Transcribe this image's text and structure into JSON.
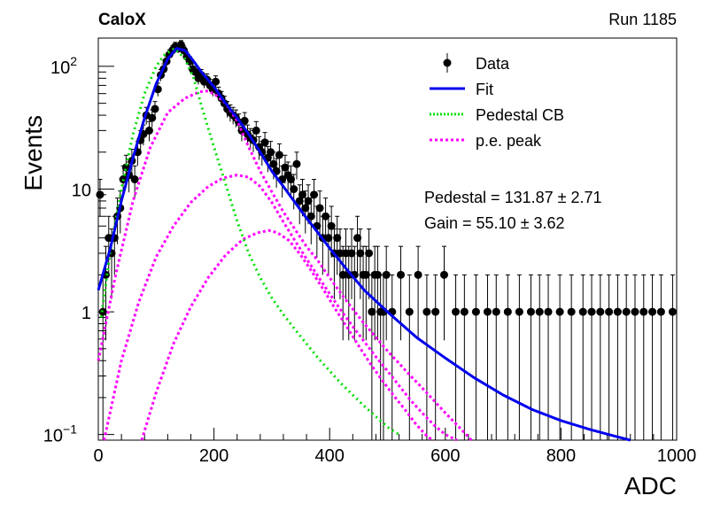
{
  "header": {
    "experiment": "CaloX",
    "run": "Run 1185"
  },
  "fit_results": {
    "pedestal": "Pedestal = 131.87 ± 2.71",
    "gain": "Gain = 55.10 ± 3.62"
  },
  "chart_data": {
    "type": "scatter",
    "title": "",
    "xlabel": "ADC",
    "ylabel": "Events",
    "xlim": [
      0,
      1000
    ],
    "ylim": [
      0.09,
      170
    ],
    "yscale": "log",
    "grid": false,
    "legend_position": "top-right",
    "x_ticks": [
      0,
      200,
      400,
      600,
      800,
      1000
    ],
    "y_ticks": [
      {
        "value": 0.1,
        "base": "10",
        "exp": "−1"
      },
      {
        "value": 1,
        "base": "1",
        "exp": ""
      },
      {
        "value": 10,
        "base": "10",
        "exp": ""
      },
      {
        "value": 100,
        "base": "10",
        "exp": "2"
      }
    ],
    "legend": [
      {
        "label": "Data",
        "style": "marker",
        "color": "#000000"
      },
      {
        "label": "Fit",
        "style": "line",
        "color": "#0000ee"
      },
      {
        "label": "Pedestal CB",
        "style": "dotted",
        "color": "#00e000"
      },
      {
        "label": "p.e. peak",
        "style": "dashed",
        "color": "#ff00ff"
      }
    ],
    "data_points": [
      [
        3,
        9
      ],
      [
        8,
        1
      ],
      [
        13,
        2
      ],
      [
        18,
        4
      ],
      [
        23,
        3
      ],
      [
        28,
        4
      ],
      [
        33,
        6
      ],
      [
        38,
        7
      ],
      [
        43,
        12
      ],
      [
        48,
        15
      ],
      [
        53,
        13
      ],
      [
        58,
        17
      ],
      [
        63,
        12
      ],
      [
        68,
        20
      ],
      [
        73,
        25
      ],
      [
        78,
        28
      ],
      [
        83,
        40
      ],
      [
        88,
        30
      ],
      [
        93,
        38
      ],
      [
        98,
        45
      ],
      [
        103,
        65
      ],
      [
        108,
        85
      ],
      [
        113,
        95
      ],
      [
        118,
        110
      ],
      [
        123,
        125
      ],
      [
        128,
        135
      ],
      [
        133,
        145
      ],
      [
        138,
        140
      ],
      [
        143,
        150
      ],
      [
        148,
        135
      ],
      [
        153,
        120
      ],
      [
        158,
        110
      ],
      [
        163,
        95
      ],
      [
        168,
        90
      ],
      [
        173,
        80
      ],
      [
        178,
        85
      ],
      [
        183,
        75
      ],
      [
        188,
        78
      ],
      [
        193,
        70
      ],
      [
        198,
        65
      ],
      [
        203,
        75
      ],
      [
        208,
        60
      ],
      [
        213,
        55
      ],
      [
        218,
        50
      ],
      [
        223,
        45
      ],
      [
        228,
        42
      ],
      [
        233,
        40
      ],
      [
        238,
        38
      ],
      [
        243,
        35
      ],
      [
        248,
        30
      ],
      [
        253,
        36
      ],
      [
        258,
        28
      ],
      [
        263,
        26
      ],
      [
        268,
        25
      ],
      [
        273,
        30
      ],
      [
        278,
        22
      ],
      [
        283,
        20
      ],
      [
        288,
        24
      ],
      [
        293,
        18
      ],
      [
        298,
        20
      ],
      [
        303,
        16
      ],
      [
        308,
        14
      ],
      [
        313,
        19
      ],
      [
        318,
        12
      ],
      [
        323,
        15
      ],
      [
        328,
        13
      ],
      [
        333,
        12
      ],
      [
        338,
        10
      ],
      [
        343,
        16
      ],
      [
        348,
        8
      ],
      [
        353,
        9
      ],
      [
        358,
        7
      ],
      [
        363,
        8
      ],
      [
        368,
        6
      ],
      [
        373,
        9
      ],
      [
        378,
        5
      ],
      [
        383,
        7
      ],
      [
        388,
        4
      ],
      [
        393,
        6
      ],
      [
        398,
        4
      ],
      [
        403,
        5
      ],
      [
        408,
        3
      ],
      [
        413,
        4
      ],
      [
        418,
        3
      ],
      [
        423,
        2
      ],
      [
        428,
        3
      ],
      [
        433,
        2
      ],
      [
        438,
        3
      ],
      [
        443,
        2
      ],
      [
        448,
        4
      ],
      [
        453,
        3
      ],
      [
        458,
        2
      ],
      [
        463,
        2
      ],
      [
        468,
        3
      ],
      [
        473,
        1
      ],
      [
        478,
        2
      ],
      [
        483,
        2
      ],
      [
        488,
        1
      ],
      [
        493,
        1
      ],
      [
        498,
        2
      ],
      [
        508,
        1
      ],
      [
        523,
        2
      ],
      [
        538,
        1
      ],
      [
        553,
        2
      ],
      [
        568,
        1
      ],
      [
        583,
        1
      ],
      [
        598,
        2
      ],
      [
        618,
        1
      ],
      [
        633,
        1
      ],
      [
        653,
        1
      ],
      [
        673,
        1
      ],
      [
        688,
        1
      ],
      [
        708,
        1
      ],
      [
        728,
        1
      ],
      [
        748,
        1
      ],
      [
        763,
        1
      ],
      [
        778,
        1
      ],
      [
        798,
        1
      ],
      [
        818,
        1
      ],
      [
        838,
        1
      ],
      [
        853,
        1
      ],
      [
        868,
        1
      ],
      [
        883,
        1
      ],
      [
        898,
        1
      ],
      [
        913,
        1
      ],
      [
        928,
        1
      ],
      [
        943,
        1
      ],
      [
        958,
        1
      ],
      [
        973,
        1
      ],
      [
        993,
        1
      ]
    ],
    "fit_curve": [
      [
        0,
        1.5
      ],
      [
        20,
        3.2
      ],
      [
        40,
        8
      ],
      [
        60,
        18
      ],
      [
        80,
        38
      ],
      [
        100,
        72
      ],
      [
        120,
        115
      ],
      [
        135,
        140
      ],
      [
        150,
        135
      ],
      [
        165,
        110
      ],
      [
        180,
        88
      ],
      [
        200,
        68
      ],
      [
        220,
        50
      ],
      [
        240,
        38
      ],
      [
        260,
        28
      ],
      [
        280,
        20
      ],
      [
        300,
        14
      ],
      [
        320,
        10.5
      ],
      [
        340,
        7.8
      ],
      [
        360,
        5.8
      ],
      [
        380,
        4.4
      ],
      [
        400,
        3.3
      ],
      [
        430,
        2.2
      ],
      [
        460,
        1.5
      ],
      [
        500,
        1.0
      ],
      [
        550,
        0.62
      ],
      [
        600,
        0.42
      ],
      [
        650,
        0.29
      ],
      [
        700,
        0.21
      ],
      [
        750,
        0.16
      ],
      [
        800,
        0.13
      ],
      [
        850,
        0.11
      ],
      [
        900,
        0.095
      ],
      [
        920,
        0.09
      ]
    ],
    "pedestal_cb": [
      [
        5,
        0.9
      ],
      [
        20,
        3
      ],
      [
        40,
        10
      ],
      [
        60,
        28
      ],
      [
        80,
        60
      ],
      [
        100,
        100
      ],
      [
        115,
        125
      ],
      [
        132,
        140
      ],
      [
        150,
        115
      ],
      [
        165,
        80
      ],
      [
        180,
        45
      ],
      [
        200,
        22
      ],
      [
        220,
        11
      ],
      [
        240,
        5.5
      ],
      [
        260,
        3.0
      ],
      [
        280,
        1.9
      ],
      [
        300,
        1.3
      ],
      [
        320,
        0.95
      ],
      [
        340,
        0.72
      ],
      [
        360,
        0.55
      ],
      [
        380,
        0.42
      ],
      [
        400,
        0.33
      ],
      [
        420,
        0.26
      ],
      [
        440,
        0.21
      ],
      [
        460,
        0.17
      ],
      [
        480,
        0.14
      ],
      [
        500,
        0.115
      ],
      [
        520,
        0.1
      ]
    ],
    "pe_peaks": [
      [
        [
          0,
          0.4
        ],
        [
          30,
          2
        ],
        [
          60,
          8
        ],
        [
          90,
          22
        ],
        [
          120,
          42
        ],
        [
          150,
          55
        ],
        [
          175,
          62
        ],
        [
          187,
          63
        ],
        [
          200,
          60
        ],
        [
          220,
          50
        ],
        [
          240,
          36
        ],
        [
          260,
          22
        ],
        [
          280,
          14
        ],
        [
          300,
          9.5
        ],
        [
          320,
          6.5
        ],
        [
          340,
          4.7
        ],
        [
          360,
          3.4
        ],
        [
          380,
          2.6
        ],
        [
          400,
          1.9
        ],
        [
          420,
          1.4
        ],
        [
          440,
          1.05
        ],
        [
          460,
          0.8
        ],
        [
          480,
          0.62
        ],
        [
          500,
          0.48
        ],
        [
          520,
          0.38
        ],
        [
          540,
          0.3
        ],
        [
          560,
          0.24
        ],
        [
          580,
          0.19
        ],
        [
          600,
          0.15
        ],
        [
          620,
          0.12
        ],
        [
          645,
          0.09
        ]
      ],
      [
        [
          10,
          0.09
        ],
        [
          40,
          0.4
        ],
        [
          70,
          1.2
        ],
        [
          100,
          2.8
        ],
        [
          130,
          5
        ],
        [
          160,
          7.8
        ],
        [
          190,
          10.5
        ],
        [
          215,
          12.3
        ],
        [
          240,
          13
        ],
        [
          260,
          12.5
        ],
        [
          280,
          10.5
        ],
        [
          300,
          7.8
        ],
        [
          320,
          5.4
        ],
        [
          340,
          3.8
        ],
        [
          360,
          2.7
        ],
        [
          380,
          1.95
        ],
        [
          400,
          1.4
        ],
        [
          420,
          1.02
        ],
        [
          440,
          0.76
        ],
        [
          460,
          0.57
        ],
        [
          480,
          0.43
        ],
        [
          500,
          0.33
        ],
        [
          520,
          0.25
        ],
        [
          540,
          0.19
        ],
        [
          560,
          0.15
        ],
        [
          580,
          0.12
        ],
        [
          600,
          0.1
        ],
        [
          620,
          0.09
        ]
      ],
      [
        [
          75,
          0.09
        ],
        [
          100,
          0.22
        ],
        [
          130,
          0.55
        ],
        [
          160,
          1.1
        ],
        [
          190,
          1.9
        ],
        [
          220,
          2.9
        ],
        [
          250,
          3.9
        ],
        [
          275,
          4.4
        ],
        [
          295,
          4.6
        ],
        [
          310,
          4.4
        ],
        [
          330,
          3.8
        ],
        [
          350,
          2.9
        ],
        [
          370,
          2.1
        ],
        [
          390,
          1.5
        ],
        [
          410,
          1.05
        ],
        [
          430,
          0.75
        ],
        [
          450,
          0.53
        ],
        [
          470,
          0.38
        ],
        [
          490,
          0.28
        ],
        [
          510,
          0.21
        ],
        [
          530,
          0.16
        ],
        [
          550,
          0.12
        ],
        [
          570,
          0.095
        ],
        [
          580,
          0.09
        ]
      ]
    ]
  }
}
